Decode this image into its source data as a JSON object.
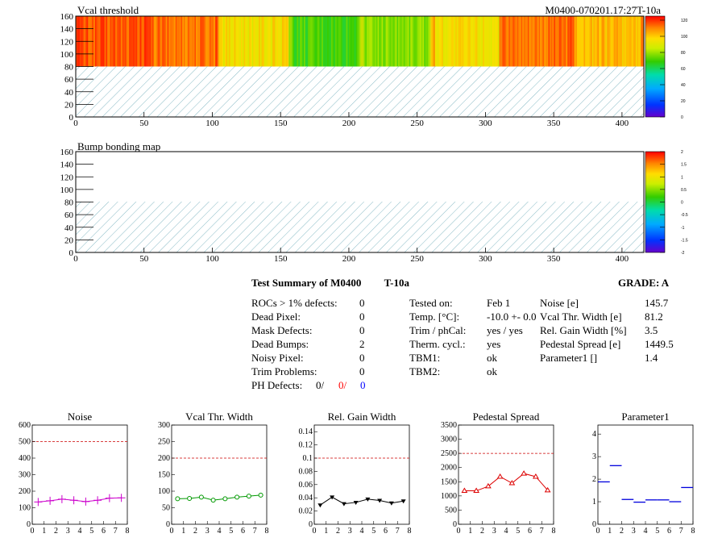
{
  "header": {
    "right_label": "M0400-070201.17:27T-10a"
  },
  "threshold_map": {
    "title": "Vcal threshold",
    "x_ticks": [
      "0",
      "50",
      "100",
      "150",
      "200",
      "250",
      "300",
      "350",
      "400"
    ],
    "y_ticks": [
      "0",
      "20",
      "40",
      "60",
      "80",
      "100",
      "120",
      "140",
      "160"
    ],
    "palette_ticks": [
      "0",
      "20",
      "40",
      "60",
      "80",
      "100",
      "120"
    ],
    "roc_fill_levels": [
      115,
      112,
      95,
      70,
      78,
      95,
      112,
      102
    ],
    "xlim": [
      0,
      416
    ],
    "ylim": [
      0,
      160
    ],
    "zlim": [
      0,
      125
    ]
  },
  "bump_map": {
    "title": "Bump bonding map",
    "x_ticks": [
      "0",
      "50",
      "100",
      "150",
      "200",
      "250",
      "300",
      "350",
      "400"
    ],
    "y_ticks": [
      "0",
      "20",
      "40",
      "60",
      "80",
      "100",
      "120",
      "140",
      "160"
    ],
    "palette_ticks": [
      "-2",
      "-1.5",
      "-1",
      "-0.5",
      "0",
      "0.5",
      "1",
      "1.5",
      "2"
    ],
    "xlim": [
      0,
      416
    ],
    "ylim": [
      0,
      160
    ]
  },
  "summary": {
    "title": "Test Summary of M0400",
    "temp_tag": "T-10a",
    "grade_label": "GRADE:  A",
    "defects": [
      {
        "label": "ROCs > 1% defects:",
        "value": "0"
      },
      {
        "label": "Dead Pixel:",
        "value": "0"
      },
      {
        "label": "Mask Defects:",
        "value": "0"
      },
      {
        "label": "Dead Bumps:",
        "value": "2"
      },
      {
        "label": "Noisy Pixel:",
        "value": "0"
      },
      {
        "label": "Trim Problems:",
        "value": "0"
      }
    ],
    "ph_defects": {
      "label": "PH Defects:",
      "v1": "0/",
      "v2": "0/",
      "v3": "0",
      "v2_color": "#ff0000",
      "v3_color": "#0000ff"
    },
    "conditions": [
      {
        "label": "Tested on:",
        "value": "Feb 1"
      },
      {
        "label": "Temp. [°C]:",
        "value": "-10.0 +- 0.0"
      },
      {
        "label": "Trim / phCal:",
        "value": "yes / yes"
      },
      {
        "label": "Therm. cycl.:",
        "value": "yes"
      },
      {
        "label": "TBM1:",
        "value": "ok"
      },
      {
        "label": "TBM2:",
        "value": "ok"
      }
    ],
    "results": [
      {
        "label": "Noise [e]",
        "value": "145.7"
      },
      {
        "label": "Vcal Thr. Width [e]",
        "value": "81.2"
      },
      {
        "label": "Rel. Gain Width [%]",
        "value": "3.5"
      },
      {
        "label": "Pedestal Spread [e]",
        "value": "1449.5"
      },
      {
        "label": "Parameter1 []",
        "value": "1.4"
      }
    ]
  },
  "chart_data": [
    {
      "type": "line",
      "title": "Noise",
      "color": "#cc00cc",
      "marker": "cross",
      "x": [
        0.5,
        1.5,
        2.5,
        3.5,
        4.5,
        5.5,
        6.5,
        7.5
      ],
      "values": [
        135,
        142,
        152,
        145,
        137,
        145,
        158,
        160
      ],
      "ylim": [
        0,
        600
      ],
      "xlim": [
        0,
        8
      ],
      "threshold": 500,
      "y_ticks": [
        "0",
        "100",
        "200",
        "300",
        "400",
        "500",
        "600"
      ],
      "x_ticks": [
        "0",
        "1",
        "2",
        "3",
        "4",
        "5",
        "6",
        "7",
        "8"
      ]
    },
    {
      "type": "line",
      "title": "Vcal Thr. Width",
      "color": "#009900",
      "marker": "circle",
      "x": [
        0.5,
        1.5,
        2.5,
        3.5,
        4.5,
        5.5,
        6.5,
        7.5
      ],
      "values": [
        77,
        78,
        82,
        73,
        77,
        82,
        85,
        88
      ],
      "ylim": [
        0,
        300
      ],
      "xlim": [
        0,
        8
      ],
      "threshold": 200,
      "y_ticks": [
        "0",
        "50",
        "100",
        "150",
        "200",
        "250",
        "300"
      ],
      "x_ticks": [
        "0",
        "1",
        "2",
        "3",
        "4",
        "5",
        "6",
        "7",
        "8"
      ]
    },
    {
      "type": "line",
      "title": "Rel. Gain Width",
      "color": "#000000",
      "marker": "triangle-down",
      "x": [
        0.5,
        1.5,
        2.5,
        3.5,
        4.5,
        5.5,
        6.5,
        7.5
      ],
      "values": [
        0.029,
        0.041,
        0.031,
        0.033,
        0.038,
        0.036,
        0.032,
        0.035
      ],
      "ylim": [
        0,
        0.15
      ],
      "xlim": [
        0,
        8
      ],
      "threshold": 0.1,
      "y_ticks": [
        "0",
        "0.02",
        "0.04",
        "0.06",
        "0.08",
        "0.1",
        "0.12",
        "0.14"
      ],
      "x_ticks": [
        "0",
        "1",
        "2",
        "3",
        "4",
        "5",
        "6",
        "7",
        "8"
      ]
    },
    {
      "type": "line",
      "title": "Pedestal Spread",
      "color": "#dd0000",
      "marker": "triangle-up",
      "x": [
        0.5,
        1.5,
        2.5,
        3.5,
        4.5,
        5.5,
        6.5,
        7.5
      ],
      "values": [
        1180,
        1180,
        1340,
        1680,
        1450,
        1790,
        1680,
        1200
      ],
      "ylim": [
        0,
        3500
      ],
      "xlim": [
        0,
        8
      ],
      "threshold": 2500,
      "y_ticks": [
        "0",
        "500",
        "1000",
        "1500",
        "2000",
        "2500",
        "3000",
        "3500"
      ],
      "x_ticks": [
        "0",
        "1",
        "2",
        "3",
        "4",
        "5",
        "6",
        "7",
        "8"
      ]
    },
    {
      "type": "scatter",
      "title": "Parameter1",
      "color": "#0000dd",
      "marker": "hbar",
      "x": [
        0.5,
        1.5,
        2.5,
        3.5,
        4.5,
        5.5,
        6.5,
        7.5
      ],
      "values": [
        1.88,
        2.6,
        1.1,
        0.98,
        1.08,
        1.08,
        1.0,
        1.63
      ],
      "ylim": [
        0,
        4.4
      ],
      "xlim": [
        0,
        8
      ],
      "y_ticks": [
        "0",
        "1",
        "2",
        "3",
        "4"
      ],
      "x_ticks": [
        "0",
        "1",
        "2",
        "3",
        "4",
        "5",
        "6",
        "7",
        "8"
      ]
    }
  ]
}
